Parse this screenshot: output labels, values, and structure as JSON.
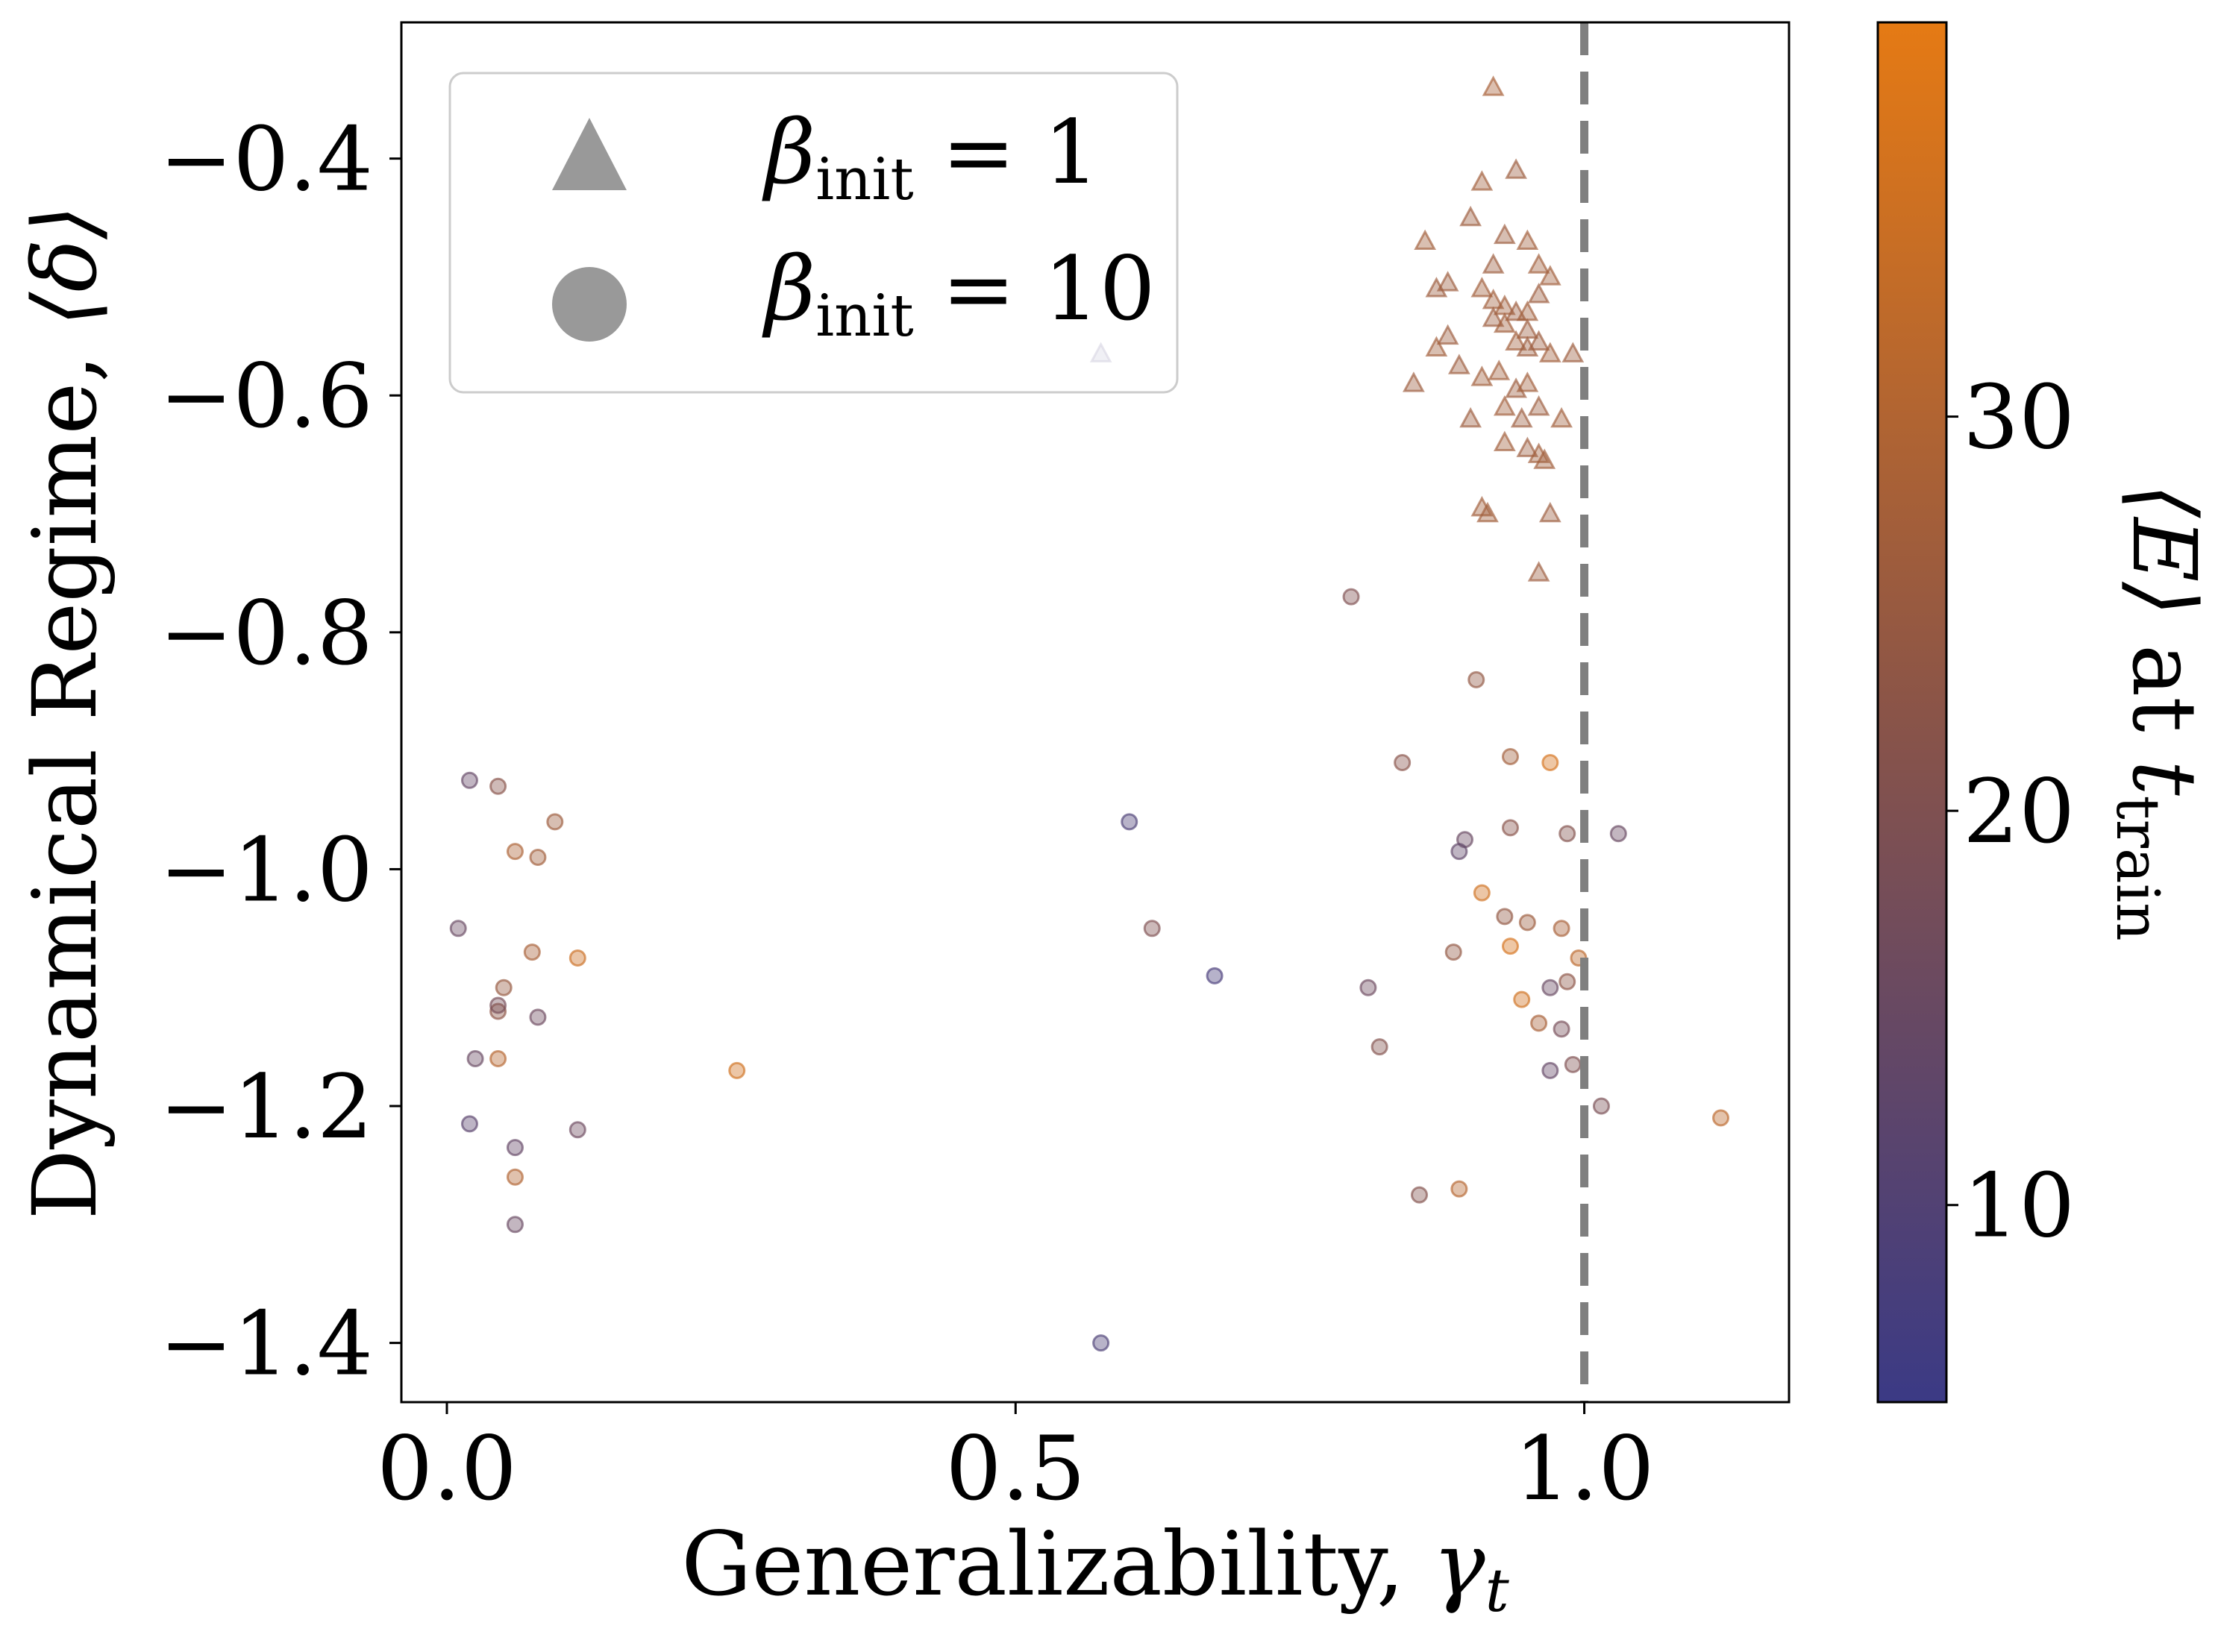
{
  "chart_data": {
    "type": "scatter",
    "xlabel_main": "Generalizability, ",
    "xlabel_symbol": "γ",
    "xlabel_sub": "t",
    "ylabel_main": "Dynamical Regime, ",
    "ylabel_symbol": "⟨δ⟩",
    "xlim": [
      -0.04,
      1.18
    ],
    "ylim": [
      -1.45,
      -0.285
    ],
    "x_ticks": [
      0.0,
      0.5,
      1.0
    ],
    "x_tick_labels": [
      "0.0",
      "0.5",
      "1.0"
    ],
    "y_ticks": [
      -0.4,
      -0.6,
      -0.8,
      -1.0,
      -1.2,
      -1.4
    ],
    "y_tick_labels": [
      "−0.4",
      "−0.6",
      "−0.8",
      "−1.0",
      "−1.2",
      "−1.4"
    ],
    "reference_line": {
      "x": 1.0,
      "style": "dashed",
      "color": "#7f7f7f"
    },
    "grid": false,
    "legend": {
      "placement": "top-left",
      "entries": [
        {
          "marker": "triangle",
          "label_symbol": "β",
          "label_sub": "init",
          "label_value": " = 1"
        },
        {
          "marker": "circle",
          "label_symbol": "β",
          "label_sub": "init",
          "label_value": " = 10"
        }
      ]
    },
    "colorbar": {
      "label_symbol": "⟨E⟩",
      "label_text": " at ",
      "label_t": "t",
      "label_sub": "train",
      "range": [
        5,
        40
      ],
      "ticks": [
        10,
        20,
        30
      ],
      "tick_labels": [
        "10",
        "20",
        "30"
      ],
      "color_low": "#3b3a85",
      "color_high": "#e57a14"
    },
    "series": [
      {
        "name": "β_init = 1",
        "marker": "triangle",
        "points": [
          [
            0.92,
            -0.34,
            28
          ],
          [
            0.94,
            -0.41,
            26
          ],
          [
            0.91,
            -0.42,
            27
          ],
          [
            0.9,
            -0.45,
            26
          ],
          [
            0.86,
            -0.47,
            27
          ],
          [
            0.93,
            -0.465,
            26
          ],
          [
            0.95,
            -0.47,
            27
          ],
          [
            0.92,
            -0.49,
            26
          ],
          [
            0.96,
            -0.49,
            27
          ],
          [
            0.97,
            -0.5,
            27
          ],
          [
            0.87,
            -0.51,
            26
          ],
          [
            0.88,
            -0.505,
            26
          ],
          [
            0.91,
            -0.51,
            27
          ],
          [
            0.96,
            -0.515,
            26
          ],
          [
            0.92,
            -0.52,
            27
          ],
          [
            0.93,
            -0.525,
            27
          ],
          [
            0.94,
            -0.53,
            26
          ],
          [
            0.95,
            -0.53,
            27
          ],
          [
            0.92,
            -0.535,
            26
          ],
          [
            0.93,
            -0.54,
            27
          ],
          [
            0.95,
            -0.545,
            26
          ],
          [
            0.88,
            -0.55,
            26
          ],
          [
            0.94,
            -0.555,
            27
          ],
          [
            0.96,
            -0.555,
            26
          ],
          [
            0.87,
            -0.56,
            27
          ],
          [
            0.95,
            -0.56,
            26
          ],
          [
            0.97,
            -0.565,
            27
          ],
          [
            0.99,
            -0.565,
            26
          ],
          [
            0.89,
            -0.575,
            26
          ],
          [
            0.925,
            -0.58,
            27
          ],
          [
            0.91,
            -0.585,
            27
          ],
          [
            0.94,
            -0.595,
            26
          ],
          [
            0.85,
            -0.59,
            26
          ],
          [
            0.95,
            -0.59,
            27
          ],
          [
            0.96,
            -0.61,
            26
          ],
          [
            0.93,
            -0.61,
            27
          ],
          [
            0.9,
            -0.62,
            26
          ],
          [
            0.945,
            -0.62,
            26
          ],
          [
            0.98,
            -0.62,
            27
          ],
          [
            0.93,
            -0.64,
            27
          ],
          [
            0.95,
            -0.645,
            26
          ],
          [
            0.96,
            -0.65,
            27
          ],
          [
            0.965,
            -0.655,
            27
          ],
          [
            0.91,
            -0.695,
            27
          ],
          [
            0.915,
            -0.7,
            27
          ],
          [
            0.97,
            -0.7,
            26
          ],
          [
            0.96,
            -0.75,
            26
          ],
          [
            0.575,
            -0.565,
            8
          ]
        ]
      },
      {
        "name": "β_init = 10",
        "marker": "circle",
        "points": [
          [
            0.02,
            -0.925,
            14
          ],
          [
            0.045,
            -0.93,
            22
          ],
          [
            0.095,
            -0.96,
            26
          ],
          [
            0.06,
            -0.985,
            29
          ],
          [
            0.08,
            -0.99,
            27
          ],
          [
            0.01,
            -1.05,
            15
          ],
          [
            0.075,
            -1.07,
            28
          ],
          [
            0.115,
            -1.075,
            35
          ],
          [
            0.05,
            -1.1,
            25
          ],
          [
            0.045,
            -1.12,
            23
          ],
          [
            0.045,
            -1.115,
            18
          ],
          [
            0.08,
            -1.125,
            16
          ],
          [
            0.025,
            -1.16,
            15
          ],
          [
            0.045,
            -1.16,
            31
          ],
          [
            0.02,
            -1.215,
            12
          ],
          [
            0.115,
            -1.22,
            16
          ],
          [
            0.06,
            -1.235,
            14
          ],
          [
            0.06,
            -1.26,
            30
          ],
          [
            0.06,
            -1.3,
            15
          ],
          [
            0.255,
            -1.17,
            36
          ],
          [
            0.6,
            -0.96,
            9
          ],
          [
            0.62,
            -1.05,
            20
          ],
          [
            0.675,
            -1.09,
            8
          ],
          [
            0.575,
            -1.4,
            9
          ],
          [
            0.795,
            -0.77,
            20
          ],
          [
            0.84,
            -0.91,
            22
          ],
          [
            0.905,
            -0.84,
            24
          ],
          [
            0.81,
            -1.1,
            16
          ],
          [
            0.82,
            -1.15,
            21
          ],
          [
            0.855,
            -1.275,
            21
          ],
          [
            0.89,
            -1.27,
            31
          ],
          [
            0.935,
            -0.905,
            27
          ],
          [
            0.97,
            -0.91,
            37
          ],
          [
            0.895,
            -0.975,
            15
          ],
          [
            0.89,
            -0.985,
            13
          ],
          [
            0.935,
            -0.965,
            22
          ],
          [
            0.985,
            -0.97,
            21
          ],
          [
            1.03,
            -0.97,
            15
          ],
          [
            0.91,
            -1.02,
            36
          ],
          [
            0.93,
            -1.04,
            24
          ],
          [
            0.95,
            -1.045,
            26
          ],
          [
            0.98,
            -1.05,
            28
          ],
          [
            0.935,
            -1.065,
            37
          ],
          [
            0.885,
            -1.07,
            24
          ],
          [
            0.995,
            -1.075,
            32
          ],
          [
            0.985,
            -1.095,
            23
          ],
          [
            0.97,
            -1.1,
            15
          ],
          [
            0.945,
            -1.11,
            36
          ],
          [
            0.96,
            -1.13,
            28
          ],
          [
            0.98,
            -1.135,
            18
          ],
          [
            0.99,
            -1.165,
            20
          ],
          [
            0.97,
            -1.17,
            14
          ],
          [
            1.015,
            -1.2,
            19
          ],
          [
            1.12,
            -1.21,
            32
          ]
        ]
      }
    ]
  }
}
